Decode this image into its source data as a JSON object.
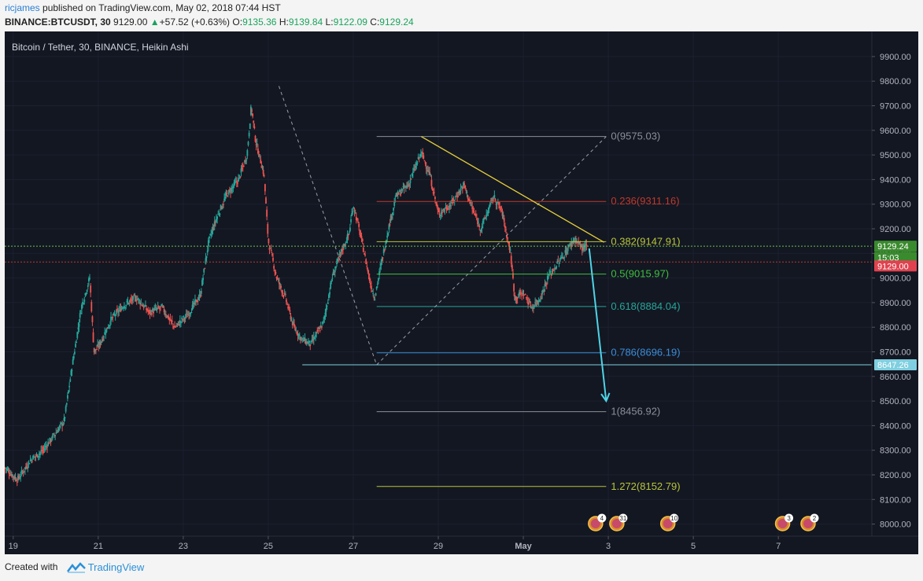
{
  "header": {
    "author": "ricjames",
    "published_text": "published on TradingView.com, May 02, 2018 07:44 HST",
    "symbol": "BINANCE:BTCUSDT, 30",
    "price": "9129.00",
    "change_arrow": "▲",
    "change": "+57.52 (+0.63%)",
    "o_label": "O:",
    "o_val": "9135.36",
    "h_label": "H:",
    "h_val": "9139.84",
    "l_label": "L:",
    "l_val": "9122.09",
    "c_label": "C:",
    "c_val": "9129.24"
  },
  "footer": {
    "created_with": "Created with",
    "brand": "TradingView"
  },
  "chart_data": {
    "type": "candlestick",
    "title": "Bitcoin / Tether, 30, BINANCE, Heikin Ashi",
    "ylim": [
      7970,
      9970
    ],
    "y_ticks": [
      "9900.00",
      "9800.00",
      "9700.00",
      "9600.00",
      "9500.00",
      "9400.00",
      "9300.00",
      "9200.00",
      "9100.00",
      "9000.00",
      "8900.00",
      "8800.00",
      "8700.00",
      "8600.00",
      "8500.00",
      "8400.00",
      "8300.00",
      "8200.00",
      "8100.00",
      "8000.00"
    ],
    "x_ticks": [
      {
        "label": "19",
        "day": 19
      },
      {
        "label": "21",
        "day": 21
      },
      {
        "label": "23",
        "day": 23
      },
      {
        "label": "25",
        "day": 25
      },
      {
        "label": "27",
        "day": 27
      },
      {
        "label": "29",
        "day": 29
      },
      {
        "label": "May",
        "day": 31
      },
      {
        "label": "3",
        "day": 33
      },
      {
        "label": "5",
        "day": 35
      },
      {
        "label": "7",
        "day": 37
      }
    ],
    "xlim": [
      18.8,
      39.2
    ],
    "price_path": [
      [
        18.8,
        8230
      ],
      [
        19.1,
        8180
      ],
      [
        19.4,
        8260
      ],
      [
        19.7,
        8300
      ],
      [
        20.0,
        8370
      ],
      [
        20.2,
        8420
      ],
      [
        20.35,
        8600
      ],
      [
        20.6,
        8880
      ],
      [
        20.8,
        9000
      ],
      [
        20.9,
        8700
      ],
      [
        21.0,
        8720
      ],
      [
        21.3,
        8830
      ],
      [
        21.6,
        8890
      ],
      [
        21.9,
        8920
      ],
      [
        22.2,
        8860
      ],
      [
        22.5,
        8880
      ],
      [
        22.8,
        8800
      ],
      [
        23.1,
        8850
      ],
      [
        23.4,
        8930
      ],
      [
        23.6,
        9150
      ],
      [
        23.8,
        9250
      ],
      [
        24.0,
        9330
      ],
      [
        24.3,
        9400
      ],
      [
        24.5,
        9500
      ],
      [
        24.6,
        9700
      ],
      [
        24.7,
        9560
      ],
      [
        24.9,
        9420
      ],
      [
        25.0,
        9150
      ],
      [
        25.2,
        9000
      ],
      [
        25.4,
        8920
      ],
      [
        25.6,
        8800
      ],
      [
        25.8,
        8750
      ],
      [
        26.0,
        8730
      ],
      [
        26.3,
        8820
      ],
      [
        26.5,
        9000
      ],
      [
        26.7,
        9100
      ],
      [
        26.9,
        9180
      ],
      [
        27.0,
        9300
      ],
      [
        27.2,
        9150
      ],
      [
        27.4,
        8980
      ],
      [
        27.5,
        8920
      ],
      [
        27.8,
        9180
      ],
      [
        28.0,
        9330
      ],
      [
        28.3,
        9380
      ],
      [
        28.6,
        9510
      ],
      [
        28.8,
        9420
      ],
      [
        29.0,
        9260
      ],
      [
        29.3,
        9300
      ],
      [
        29.6,
        9380
      ],
      [
        29.8,
        9280
      ],
      [
        30.0,
        9200
      ],
      [
        30.3,
        9330
      ],
      [
        30.5,
        9270
      ],
      [
        30.7,
        9100
      ],
      [
        30.8,
        8920
      ],
      [
        31.0,
        8940
      ],
      [
        31.2,
        8880
      ],
      [
        31.4,
        8920
      ],
      [
        31.6,
        9010
      ],
      [
        31.9,
        9080
      ],
      [
        32.2,
        9160
      ],
      [
        32.4,
        9120
      ],
      [
        32.5,
        9129
      ]
    ],
    "annotations": {
      "fibonacci": [
        {
          "level": "0",
          "price": 9575.03,
          "text": "0(9575.03)",
          "color": "#8a8f9a"
        },
        {
          "level": "0.236",
          "price": 9311.16,
          "text": "0.236(9311.16)",
          "color": "#c0392b"
        },
        {
          "level": "0.382",
          "price": 9147.91,
          "text": "0.382(9147.91)",
          "color": "#b8c43a"
        },
        {
          "level": "0.5",
          "price": 9015.97,
          "text": "0.5(9015.97)",
          "color": "#3fbf3f"
        },
        {
          "level": "0.618",
          "price": 8884.04,
          "text": "0.618(8884.04)",
          "color": "#26a69a"
        },
        {
          "level": "0.786",
          "price": 8696.19,
          "text": "0.786(8696.19)",
          "color": "#3a8dd6"
        },
        {
          "level": "1",
          "price": 8456.92,
          "text": "1(8456.92)",
          "color": "#8a8f9a"
        },
        {
          "level": "1.272",
          "price": 8152.79,
          "text": "1.272(8152.79)",
          "color": "#b8c43a"
        }
      ],
      "horizontal_price": 8647.26,
      "price_tags": [
        {
          "text": "9129.24",
          "bg": "#3a8a2e",
          "price": 9129.24
        },
        {
          "text": "15:03",
          "bg": "#3a8a2e",
          "price": 9084
        },
        {
          "text": "9129.00",
          "bg": "#e0424f",
          "price": 9049
        },
        {
          "text": "8647.26",
          "bg": "#7fcfe0",
          "price": 8647.26
        }
      ],
      "current_price": 9129.24,
      "red_line_price": 9065,
      "trendline": [
        [
          28.6,
          9575
        ],
        [
          32.9,
          9145
        ]
      ],
      "projection_arrow": [
        [
          32.55,
          9120
        ],
        [
          32.95,
          8500
        ]
      ],
      "events": [
        {
          "day": 32.7,
          "count": "4"
        },
        {
          "day": 33.2,
          "count": "31"
        },
        {
          "day": 34.4,
          "count": "10"
        },
        {
          "day": 37.1,
          "count": "3"
        },
        {
          "day": 37.7,
          "count": "2"
        }
      ]
    },
    "colors": {
      "background": "#131722",
      "up": "#26a69a",
      "down": "#ef5350",
      "grid": "#1c2030",
      "text": "#b2b5be"
    }
  }
}
